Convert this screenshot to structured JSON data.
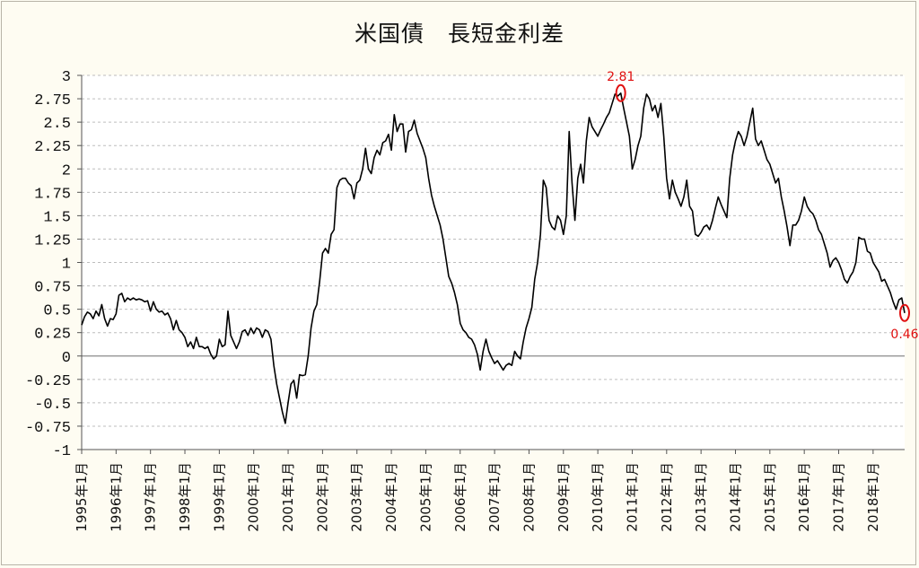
{
  "chart_data": {
    "type": "line",
    "title": "米国債　長短金利差",
    "ylim": [
      -1,
      3
    ],
    "ytick_labels": [
      "3",
      "2.75",
      "2.5",
      "2.25",
      "2",
      "1.75",
      "1.5",
      "1.25",
      "1",
      "0.75",
      "0.5",
      "0.25",
      "0",
      "-0.25",
      "-0.5",
      "-0.75",
      "-1"
    ],
    "xtick_labels": [
      "1995年1月",
      "1996年1月",
      "1997年1月",
      "1998年1月",
      "1999年1月",
      "2000年1月",
      "2001年1月",
      "2002年1月",
      "2003年1月",
      "2004年1月",
      "2005年1月",
      "2006年1月",
      "2007年1月",
      "2008年1月",
      "2009年1月",
      "2010年1月",
      "2011年1月",
      "2012年1月",
      "2013年1月",
      "2014年1月",
      "2015年1月",
      "2016年1月",
      "2017年1月",
      "2018年1月"
    ],
    "grid": true,
    "annotations": [
      {
        "label": "2.81",
        "x": "2010年3月",
        "y": 2.81
      },
      {
        "label": "0.46",
        "x": "2018年2月",
        "y": 0.46
      }
    ],
    "series": [
      {
        "color": "#000000",
        "x_start": "1995年1月",
        "interval": "month",
        "values": [
          0.33,
          0.42,
          0.47,
          0.45,
          0.4,
          0.48,
          0.43,
          0.55,
          0.4,
          0.32,
          0.4,
          0.39,
          0.45,
          0.65,
          0.67,
          0.58,
          0.62,
          0.6,
          0.62,
          0.6,
          0.61,
          0.6,
          0.58,
          0.59,
          0.48,
          0.58,
          0.5,
          0.47,
          0.48,
          0.44,
          0.46,
          0.4,
          0.28,
          0.38,
          0.28,
          0.25,
          0.2,
          0.1,
          0.15,
          0.08,
          0.2,
          0.1,
          0.1,
          0.08,
          0.1,
          0.02,
          -0.03,
          0.0,
          0.18,
          0.1,
          0.12,
          0.48,
          0.22,
          0.15,
          0.08,
          0.15,
          0.26,
          0.28,
          0.22,
          0.3,
          0.24,
          0.3,
          0.28,
          0.2,
          0.28,
          0.26,
          0.18,
          -0.1,
          -0.3,
          -0.45,
          -0.6,
          -0.72,
          -0.5,
          -0.3,
          -0.26,
          -0.45,
          -0.2,
          -0.21,
          -0.2,
          0.0,
          0.3,
          0.48,
          0.55,
          0.8,
          1.1,
          1.15,
          1.1,
          1.3,
          1.35,
          1.8,
          1.88,
          1.9,
          1.9,
          1.85,
          1.82,
          1.68,
          1.85,
          1.88,
          2.0,
          2.22,
          2.0,
          1.95,
          2.12,
          2.2,
          2.15,
          2.28,
          2.3,
          2.37,
          2.2,
          2.58,
          2.4,
          2.48,
          2.48,
          2.18,
          2.4,
          2.42,
          2.52,
          2.38,
          2.3,
          2.22,
          2.12,
          1.9,
          1.72,
          1.6,
          1.5,
          1.4,
          1.25,
          1.05,
          0.85,
          0.78,
          0.68,
          0.55,
          0.35,
          0.28,
          0.25,
          0.2,
          0.18,
          0.12,
          0.02,
          -0.15,
          0.05,
          0.18,
          0.05,
          -0.02,
          -0.08,
          -0.05,
          -0.1,
          -0.15,
          -0.1,
          -0.08,
          -0.1,
          0.05,
          0.0,
          -0.03,
          0.15,
          0.3,
          0.4,
          0.52,
          0.82,
          1.0,
          1.3,
          1.88,
          1.8,
          1.45,
          1.38,
          1.35,
          1.5,
          1.45,
          1.3,
          1.5,
          2.4,
          1.85,
          1.45,
          1.9,
          2.05,
          1.85,
          2.3,
          2.55,
          2.45,
          2.4,
          2.35,
          2.42,
          2.48,
          2.55,
          2.6,
          2.7,
          2.8,
          2.78,
          2.81,
          2.65,
          2.5,
          2.35,
          2.0,
          2.1,
          2.25,
          2.35,
          2.65,
          2.8,
          2.75,
          2.62,
          2.68,
          2.55,
          2.7,
          2.35,
          1.9,
          1.68,
          1.88,
          1.75,
          1.68,
          1.6,
          1.7,
          1.88,
          1.6,
          1.55,
          1.3,
          1.28,
          1.32,
          1.38,
          1.4,
          1.35,
          1.45,
          1.58,
          1.7,
          1.62,
          1.55,
          1.48,
          1.9,
          2.15,
          2.3,
          2.4,
          2.35,
          2.25,
          2.35,
          2.5,
          2.65,
          2.32,
          2.25,
          2.3,
          2.2,
          2.1,
          2.05,
          1.95,
          1.85,
          1.9,
          1.7,
          1.55,
          1.38,
          1.18,
          1.4,
          1.4,
          1.45,
          1.55,
          1.7,
          1.6,
          1.55,
          1.52,
          1.45,
          1.35,
          1.3,
          1.2,
          1.1,
          0.95,
          1.02,
          1.05,
          1.0,
          0.92,
          0.82,
          0.78,
          0.85,
          0.9,
          1.0,
          1.27,
          1.25,
          1.25,
          1.12,
          1.1,
          1.0,
          0.95,
          0.9,
          0.8,
          0.82,
          0.75,
          0.68,
          0.58,
          0.5,
          0.6,
          0.62,
          0.46
        ]
      }
    ]
  }
}
